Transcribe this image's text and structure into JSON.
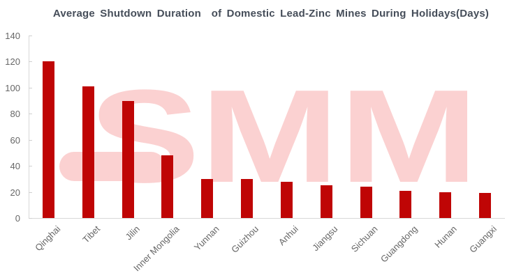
{
  "chart_data": {
    "type": "bar",
    "title": "Average Shutdown Duration  of Domestic Lead-Zinc Mines During Holidays(Days)",
    "categories": [
      "Qinghai",
      "Tibet",
      "Jilin",
      "Inner Mongolia",
      "Yunnan",
      "Guizhou",
      "Anhui",
      "Jiangsu",
      "Sichuan",
      "Guangdong",
      "Hunan",
      "Guangxi"
    ],
    "values": [
      120,
      101,
      90,
      48,
      30,
      30,
      28,
      25,
      24,
      21,
      20,
      19
    ],
    "xlabel": "",
    "ylabel": "",
    "ylim": [
      0,
      140
    ],
    "yticks": [
      0,
      20,
      40,
      60,
      80,
      100,
      120,
      140
    ],
    "grid": false,
    "legend_position": "none",
    "x_tick_rotation_deg": 45,
    "watermark": "SMM",
    "colors": {
      "bar": "#bf0505",
      "watermark": "#fbd1d1",
      "title": "#454d59",
      "axis_labels": "#666666",
      "axis_lines": "#d8d8d8"
    }
  }
}
